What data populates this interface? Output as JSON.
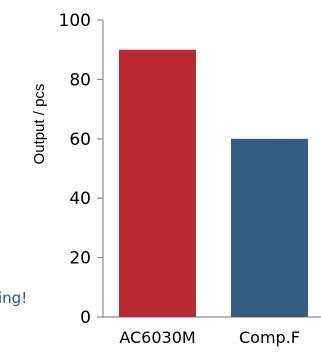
{
  "side_note": "ing!",
  "chart_data": {
    "type": "bar",
    "categories": [
      "AC6030M",
      "Comp.F"
    ],
    "values": [
      90,
      60
    ],
    "colors": [
      "#bb2b33",
      "#345d80"
    ],
    "ylabel": "Output / pcs",
    "xlabel": "",
    "ylim": [
      0,
      100
    ],
    "yticks": [
      0,
      20,
      40,
      60,
      80,
      100
    ],
    "grid": false
  }
}
